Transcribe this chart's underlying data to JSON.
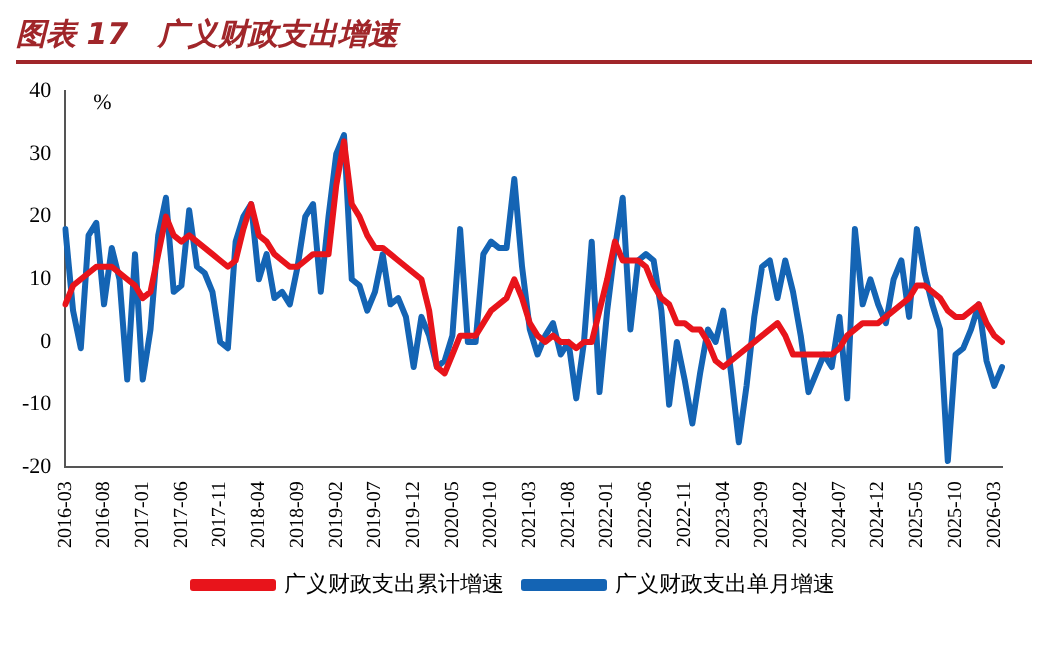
{
  "chart_data": {
    "type": "line",
    "title": "图表 17　广义财政支出增速",
    "ylabel": "%",
    "categories": [
      "2016-03",
      null,
      null,
      null,
      null,
      "2016-08",
      null,
      null,
      null,
      null,
      "2017-01",
      null,
      null,
      null,
      null,
      "2017-06",
      null,
      null,
      null,
      null,
      "2017-11",
      null,
      null,
      null,
      null,
      "2018-04",
      null,
      null,
      null,
      null,
      "2018-09",
      null,
      null,
      null,
      null,
      "2019-02",
      null,
      null,
      null,
      null,
      "2019-07",
      null,
      null,
      null,
      null,
      "2019-12",
      null,
      null,
      null,
      null,
      "2020-05",
      null,
      null,
      null,
      null,
      "2020-10",
      null,
      null,
      null,
      null,
      "2021-03",
      null,
      null,
      null,
      null,
      "2021-08",
      null,
      null,
      null,
      null,
      "2022-01",
      null,
      null,
      null,
      null,
      "2022-06",
      null,
      null,
      null,
      null,
      "2022-11",
      null,
      null,
      null,
      null,
      "2023-04",
      null,
      null,
      null,
      null,
      "2023-09",
      null,
      null,
      null,
      null,
      "2024-02",
      null,
      null,
      null,
      null,
      "2024-07",
      null,
      null,
      null,
      null,
      "2024-12",
      null,
      null,
      null,
      null,
      "2025-05",
      null,
      null,
      null,
      null,
      "2025-10",
      null,
      null,
      null,
      null,
      "2026-03",
      null
    ],
    "series": [
      {
        "name": "广义财政支出累计增速",
        "color": "#e8141b",
        "values": [
          6,
          9,
          10,
          11,
          12,
          12,
          12,
          11,
          10,
          9,
          7,
          8,
          14,
          20,
          17,
          16,
          17,
          16,
          15,
          14,
          13,
          12,
          13,
          18,
          22,
          17,
          16,
          14,
          13,
          12,
          12,
          13,
          14,
          14,
          14,
          25,
          32,
          22,
          20,
          17,
          15,
          15,
          14,
          13,
          12,
          11,
          10,
          5,
          -4,
          -5,
          -2,
          1,
          1,
          1,
          3,
          5,
          6,
          7,
          10,
          7,
          3,
          1,
          0,
          1,
          0,
          0,
          -1,
          0,
          0,
          5,
          10,
          16,
          13,
          13,
          13,
          12,
          9,
          7,
          6,
          3,
          3,
          2,
          2,
          0,
          -3,
          -4,
          -3,
          -2,
          -1,
          0,
          1,
          2,
          3,
          1,
          -2,
          -2,
          -2,
          -2,
          -2,
          -2,
          -1,
          1,
          2,
          3,
          3,
          3,
          4,
          5,
          6,
          7,
          9,
          9,
          8,
          7,
          5,
          4,
          4,
          5,
          6,
          3,
          1,
          0
        ]
      },
      {
        "name": "广义财政支出单月增速",
        "color": "#1464b4",
        "values": [
          18,
          5,
          -1,
          17,
          19,
          6,
          15,
          10,
          -6,
          14,
          -6,
          2,
          17,
          23,
          8,
          9,
          21,
          12,
          11,
          8,
          0,
          -1,
          16,
          20,
          22,
          10,
          14,
          7,
          8,
          6,
          12,
          20,
          22,
          8,
          20,
          30,
          33,
          10,
          9,
          5,
          8,
          14,
          6,
          7,
          4,
          -4,
          4,
          1,
          -4,
          -3,
          1,
          18,
          0,
          0,
          14,
          16,
          15,
          15,
          26,
          12,
          2,
          -2,
          1,
          3,
          -2,
          0,
          -9,
          0,
          16,
          -8,
          5,
          15,
          23,
          2,
          13,
          14,
          13,
          5,
          -10,
          0,
          -6,
          -13,
          -5,
          2,
          0,
          5,
          -5,
          -16,
          -7,
          4,
          12,
          13,
          7,
          13,
          8,
          1,
          -8,
          -5,
          -2,
          -4,
          4,
          -9,
          18,
          6,
          10,
          6,
          3,
          10,
          13,
          4,
          18,
          11,
          6,
          2,
          -19,
          -2,
          -1,
          2,
          6,
          -3,
          -7,
          -4
        ]
      }
    ],
    "ylim": [
      -20,
      40
    ],
    "yticks": [
      -20,
      -10,
      0,
      10,
      20,
      30,
      40
    ],
    "grid": false,
    "legend": "bottom",
    "marker": "none",
    "line_style": "solid"
  }
}
